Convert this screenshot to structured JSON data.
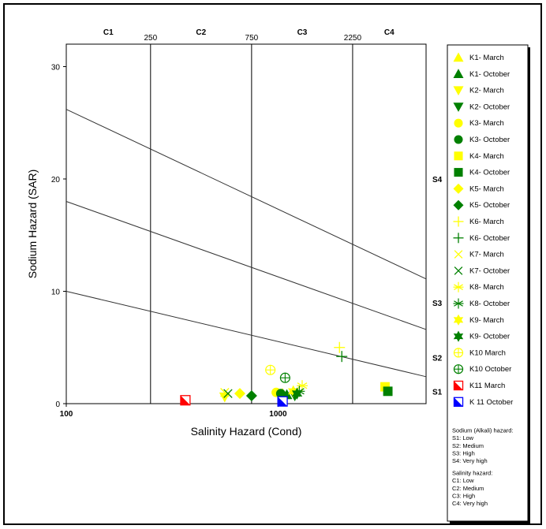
{
  "chart_data": {
    "type": "scatter",
    "title": "",
    "xlabel": "Salinity Hazard (Cond)",
    "ylabel": "Sodium Hazard (SAR)",
    "x_scale": "log",
    "xlim": [
      100,
      5000
    ],
    "ylim": [
      0,
      32
    ],
    "x_ticks": [
      {
        "v": 100,
        "label": "100"
      },
      {
        "v": 1000,
        "label": "1000"
      }
    ],
    "y_ticks": [
      {
        "v": 0,
        "label": "0"
      },
      {
        "v": 10,
        "label": "10"
      },
      {
        "v": 20,
        "label": "20"
      },
      {
        "v": 30,
        "label": "30"
      }
    ],
    "salinity_classes": [
      {
        "label": "C1",
        "center": 158
      },
      {
        "label": "C2",
        "center": 433
      },
      {
        "label": "C3",
        "center": 1300
      },
      {
        "label": "C4",
        "center": 3350
      }
    ],
    "boundaries": [
      {
        "value": 250,
        "label": "250"
      },
      {
        "value": 750,
        "label": "750"
      },
      {
        "value": 2250,
        "label": "2250"
      }
    ],
    "sodium_lines": [
      {
        "x1": 100,
        "y1": 26.2,
        "x2": 5000,
        "y2": 11.1
      },
      {
        "x1": 100,
        "y1": 18.0,
        "x2": 5000,
        "y2": 6.6
      },
      {
        "x1": 100,
        "y1": 10.0,
        "x2": 5000,
        "y2": 2.4
      }
    ],
    "sodium_classes": [
      {
        "label": "S4",
        "y": 20
      },
      {
        "label": "S3",
        "y": 9
      },
      {
        "label": "S2",
        "y": 4.1
      },
      {
        "label": "S1",
        "y": 1.1
      }
    ],
    "series": [
      {
        "name": "K1- March",
        "marker": "triangle-up",
        "color": "#FFFF00",
        "points": [
          [
            1050,
            0.9
          ]
        ]
      },
      {
        "name": "K1- October",
        "marker": "triangle-up",
        "color": "#008000",
        "points": [
          [
            1100,
            0.8
          ]
        ]
      },
      {
        "name": "K2- March",
        "marker": "triangle-down",
        "color": "#FFFF00",
        "points": [
          [
            560,
            0.6
          ]
        ]
      },
      {
        "name": "K2- October",
        "marker": "triangle-down",
        "color": "#008000",
        "points": [
          [
            1200,
            0.7
          ]
        ]
      },
      {
        "name": "K3- March",
        "marker": "circle",
        "color": "#FFFF00",
        "points": [
          [
            980,
            1.0
          ]
        ]
      },
      {
        "name": "K3- October",
        "marker": "circle",
        "color": "#008000",
        "points": [
          [
            1030,
            0.9
          ]
        ]
      },
      {
        "name": "K4- March",
        "marker": "square",
        "color": "#FFFF00",
        "points": [
          [
            3200,
            1.5
          ]
        ]
      },
      {
        "name": "K4- October",
        "marker": "square",
        "color": "#008000",
        "points": [
          [
            3300,
            1.1
          ]
        ]
      },
      {
        "name": "K5- March",
        "marker": "diamond",
        "color": "#FFFF00",
        "points": [
          [
            660,
            0.9
          ]
        ]
      },
      {
        "name": "K5- October",
        "marker": "diamond",
        "color": "#008000",
        "points": [
          [
            750,
            0.7
          ]
        ]
      },
      {
        "name": "K6- March",
        "marker": "plus",
        "color": "#FFFF00",
        "points": [
          [
            1950,
            5.0
          ]
        ]
      },
      {
        "name": "K6- October",
        "marker": "plus",
        "color": "#008000",
        "points": [
          [
            2000,
            4.2
          ]
        ]
      },
      {
        "name": "K7- March",
        "marker": "x",
        "color": "#FFFF00",
        "points": [
          [
            560,
            1.0
          ]
        ]
      },
      {
        "name": "K7- October",
        "marker": "x",
        "color": "#008000",
        "points": [
          [
            580,
            0.9
          ]
        ]
      },
      {
        "name": "K8- March",
        "marker": "asterisk",
        "color": "#FFFF00",
        "points": [
          [
            1300,
            1.6
          ]
        ]
      },
      {
        "name": "K8- October",
        "marker": "asterisk",
        "color": "#008000",
        "points": [
          [
            1260,
            1.1
          ]
        ]
      },
      {
        "name": "K9- March",
        "marker": "star",
        "color": "#FFFF00",
        "points": [
          [
            1180,
            1.1
          ]
        ]
      },
      {
        "name": "K9- October",
        "marker": "star",
        "color": "#008000",
        "points": [
          [
            1230,
            0.9
          ]
        ]
      },
      {
        "name": "K10 March",
        "marker": "circle-cross",
        "color": "#FFFF00",
        "points": [
          [
            920,
            3.0
          ]
        ]
      },
      {
        "name": "K10 October",
        "marker": "circle-cross",
        "color": "#008000",
        "points": [
          [
            1080,
            2.3
          ]
        ]
      },
      {
        "name": "K11 March",
        "marker": "square-half",
        "color": "#FF0000",
        "points": [
          [
            365,
            0.3
          ]
        ]
      },
      {
        "name": "K 11 October",
        "marker": "square-half",
        "color": "#0000FF",
        "points": [
          [
            1050,
            0.2
          ]
        ]
      }
    ],
    "legend_position": "right",
    "legend_legend_text": [
      "Sodium (Alkali) hazard:",
      "S1: Low",
      "S2: Medium",
      "S3: High",
      "S4: Very high",
      "Salinity hazard:",
      "C1: Low",
      "C2: Medium",
      "C3: High",
      "C4: Very high"
    ]
  }
}
